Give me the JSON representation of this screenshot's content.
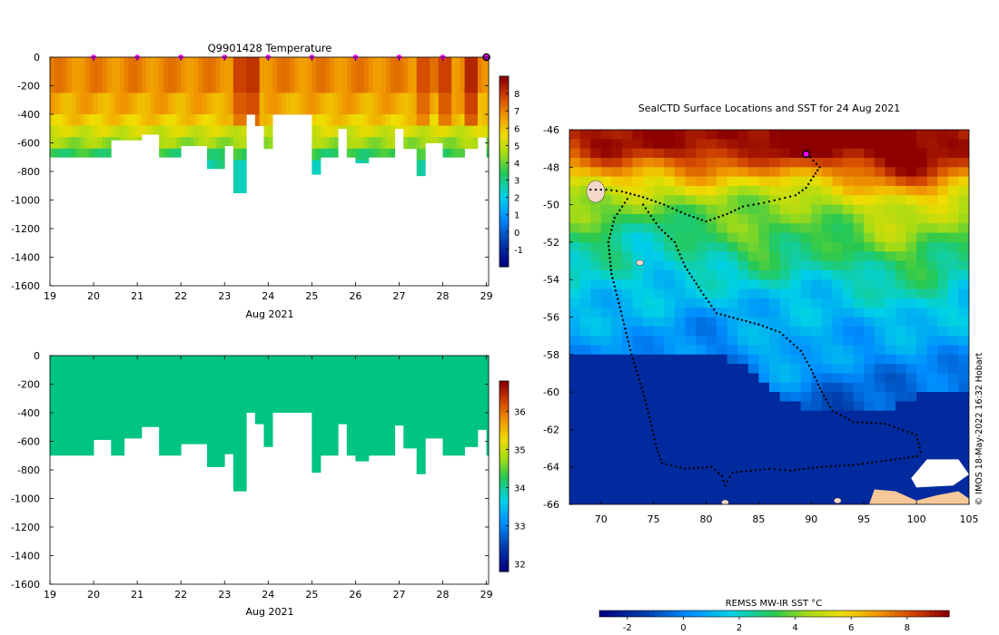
{
  "chart_data": [
    {
      "type": "heatmap",
      "title": "Q9901428  Temperature",
      "xlabel": "Aug 2021",
      "xlim": [
        19,
        29.05
      ],
      "ylim": [
        -1600,
        0
      ],
      "x_ticks": [
        "19",
        "20",
        "21",
        "22",
        "23",
        "24",
        "25",
        "26",
        "27",
        "28",
        "29"
      ],
      "y_ticks": [
        "0",
        "-200",
        "-400",
        "-600",
        "-800",
        "-1000",
        "-1200",
        "-1400",
        "-1600"
      ],
      "colorbar": {
        "min": -2,
        "max": 9,
        "ticks": [
          "-1",
          "0",
          "1",
          "2",
          "3",
          "4",
          "5",
          "6",
          "7",
          "8"
        ]
      },
      "markers_x": [
        20,
        21,
        22,
        23,
        24,
        25,
        26,
        27,
        28
      ],
      "current_x": 29,
      "profile_bottoms": [
        [
          19.0,
          700
        ],
        [
          19.5,
          700
        ],
        [
          20.0,
          700
        ],
        [
          20.4,
          580
        ],
        [
          20.7,
          580
        ],
        [
          21.1,
          540
        ],
        [
          21.5,
          700
        ],
        [
          22.0,
          620
        ],
        [
          22.4,
          620
        ],
        [
          22.6,
          780
        ],
        [
          23.0,
          620
        ],
        [
          23.2,
          950
        ],
        [
          23.5,
          400
        ],
        [
          23.7,
          480
        ],
        [
          23.9,
          640
        ],
        [
          24.1,
          400
        ],
        [
          24.5,
          400
        ],
        [
          25.0,
          820
        ],
        [
          25.2,
          700
        ],
        [
          25.6,
          500
        ],
        [
          25.8,
          700
        ],
        [
          26.0,
          740
        ],
        [
          26.3,
          700
        ],
        [
          26.9,
          500
        ],
        [
          27.1,
          640
        ],
        [
          27.4,
          830
        ],
        [
          27.6,
          600
        ],
        [
          28.0,
          700
        ],
        [
          28.5,
          640
        ],
        [
          28.8,
          560
        ],
        [
          29.0,
          700
        ]
      ],
      "levels": [
        {
          "depth": [
            0,
            250
          ],
          "value": 7.0
        },
        {
          "depth": [
            250,
            400
          ],
          "value": 6.5
        },
        {
          "depth": [
            400,
            480
          ],
          "value": 6.0
        },
        {
          "depth": [
            480,
            560
          ],
          "value": 5.2
        },
        {
          "depth": [
            560,
            640
          ],
          "value": 4.5
        },
        {
          "depth": [
            640,
            720
          ],
          "value": 3.5
        },
        {
          "depth": [
            720,
            1000
          ],
          "value": 2.8
        }
      ],
      "warm_columns": [
        [
          23.3,
          8.0
        ],
        [
          23.6,
          8.2
        ],
        [
          27.5,
          7.8
        ],
        [
          28.0,
          8.0
        ],
        [
          28.6,
          8.4
        ]
      ]
    },
    {
      "type": "heatmap",
      "title": "",
      "xlabel": "Aug 2021",
      "xlim": [
        19,
        29.05
      ],
      "ylim": [
        -1600,
        0
      ],
      "x_ticks": [
        "19",
        "20",
        "21",
        "22",
        "23",
        "24",
        "25",
        "26",
        "27",
        "28",
        "29"
      ],
      "y_ticks": [
        "0",
        "-200",
        "-400",
        "-600",
        "-800",
        "-1000",
        "-1200",
        "-1400",
        "-1600"
      ],
      "colorbar": {
        "min": 31.8,
        "max": 36.8,
        "ticks": [
          "32",
          "33",
          "34",
          "35",
          "36"
        ]
      },
      "field_value": 33.8,
      "profile_bottoms": [
        [
          19.0,
          700
        ],
        [
          19.5,
          700
        ],
        [
          20.0,
          590
        ],
        [
          20.4,
          700
        ],
        [
          20.7,
          580
        ],
        [
          21.1,
          500
        ],
        [
          21.5,
          700
        ],
        [
          22.0,
          620
        ],
        [
          22.4,
          620
        ],
        [
          22.6,
          780
        ],
        [
          23.0,
          690
        ],
        [
          23.2,
          950
        ],
        [
          23.5,
          400
        ],
        [
          23.7,
          480
        ],
        [
          23.9,
          640
        ],
        [
          24.1,
          400
        ],
        [
          24.5,
          400
        ],
        [
          25.0,
          820
        ],
        [
          25.2,
          700
        ],
        [
          25.6,
          480
        ],
        [
          25.8,
          700
        ],
        [
          26.0,
          740
        ],
        [
          26.3,
          700
        ],
        [
          26.9,
          490
        ],
        [
          27.1,
          650
        ],
        [
          27.4,
          830
        ],
        [
          27.6,
          580
        ],
        [
          28.0,
          700
        ],
        [
          28.5,
          640
        ],
        [
          28.8,
          520
        ],
        [
          29.0,
          700
        ]
      ]
    },
    {
      "type": "heatmap",
      "title": "SealCTD Surface Locations and SST for 24 Aug 2021",
      "xlim": [
        67,
        105
      ],
      "ylim": [
        -66,
        -46
      ],
      "x_ticks": [
        "70",
        "75",
        "80",
        "85",
        "90",
        "95",
        "100",
        "105"
      ],
      "y_ticks": [
        "-46",
        "-48",
        "-50",
        "-52",
        "-54",
        "-56",
        "-58",
        "-60",
        "-62",
        "-64",
        "-66"
      ],
      "colorbar": {
        "label": "REMSS MW-IR SST °C",
        "min": -3,
        "max": 9.5,
        "ticks": [
          "-2",
          "0",
          "2",
          "4",
          "6",
          "8"
        ]
      },
      "credit": "© IMOS 18-May-2022 16:32 Hobart",
      "sst_by_latitude": [
        [
          -46,
          8.5
        ],
        [
          -47,
          8.0
        ],
        [
          -48,
          6.5
        ],
        [
          -49,
          5.0
        ],
        [
          -50,
          4.0
        ],
        [
          -51,
          3.6
        ],
        [
          -52,
          3.0
        ],
        [
          -53,
          2.4
        ],
        [
          -54,
          1.8
        ],
        [
          -55,
          1.3
        ],
        [
          -56,
          0.9
        ],
        [
          -57,
          0.6
        ],
        [
          -58,
          0.3
        ],
        [
          -59,
          -0.2
        ],
        [
          -60,
          -0.6
        ],
        [
          -61,
          -1.2
        ],
        [
          -62,
          -1.6
        ],
        [
          -63,
          -1.8
        ],
        [
          -66,
          -1.9
        ]
      ],
      "sst_anomalies": [
        {
          "lon": 88,
          "lat": -46.5,
          "r": 4.0,
          "d": 2.0
        },
        {
          "lon": 97,
          "lat": -47.5,
          "r": 5.0,
          "d": 2.2
        },
        {
          "lon": 102,
          "lat": -48.5,
          "r": 4.0,
          "d": 1.5
        },
        {
          "lon": 72,
          "lat": -47.0,
          "r": 4.5,
          "d": 1.2
        },
        {
          "lon": 80,
          "lat": -47.5,
          "r": 3.5,
          "d": 1.4
        },
        {
          "lon": 75,
          "lat": -52.0,
          "r": 3.0,
          "d": -1.2
        },
        {
          "lon": 85,
          "lat": -52.5,
          "r": 2.5,
          "d": 1.0
        },
        {
          "lon": 98,
          "lat": -52.0,
          "r": 4.0,
          "d": 1.0
        },
        {
          "lon": 100,
          "lat": -55.0,
          "r": 4.0,
          "d": 0.8
        },
        {
          "lon": 88,
          "lat": -58.5,
          "r": 3.5,
          "d": 0.8
        },
        {
          "lon": 80,
          "lat": -57.0,
          "r": 3.5,
          "d": -0.6
        }
      ],
      "ice_edge": [
        [
          67,
          -57.9
        ],
        [
          75,
          -57.9
        ],
        [
          80,
          -58.0
        ],
        [
          84,
          -58.4
        ],
        [
          86,
          -59.8
        ],
        [
          88,
          -60.7
        ],
        [
          92,
          -60.9
        ],
        [
          97,
          -61.0
        ],
        [
          100,
          -60.2
        ],
        [
          103,
          -60.1
        ],
        [
          105,
          -60.0
        ]
      ],
      "ice_patch": [
        [
          99.5,
          -64.6
        ],
        [
          101,
          -63.6
        ],
        [
          104,
          -63.6
        ],
        [
          105,
          -64.4
        ],
        [
          103.5,
          -65.0
        ],
        [
          100,
          -65.1
        ]
      ],
      "land": [
        [
          95.5,
          -66
        ],
        [
          96,
          -65.2
        ],
        [
          98,
          -65.3
        ],
        [
          100,
          -65.8
        ],
        [
          102,
          -65.5
        ],
        [
          104,
          -65.3
        ],
        [
          105,
          -65.7
        ],
        [
          105,
          -66
        ]
      ],
      "islands": [
        [
          69.5,
          -49.3
        ],
        [
          73.7,
          -53.1
        ],
        [
          81.8,
          -65.9
        ],
        [
          92.5,
          -65.8
        ]
      ],
      "seal_track": [
        [
          69.0,
          -49.2
        ],
        [
          70.5,
          -49.2
        ],
        [
          72.0,
          -49.3
        ],
        [
          74.0,
          -49.6
        ],
        [
          76.0,
          -50.0
        ],
        [
          78.0,
          -50.5
        ],
        [
          80.0,
          -50.9
        ],
        [
          82.0,
          -50.5
        ],
        [
          83.5,
          -50.1
        ],
        [
          85.5,
          -49.9
        ],
        [
          87.0,
          -49.7
        ],
        [
          88.5,
          -49.5
        ],
        [
          89.5,
          -49.1
        ],
        [
          90.2,
          -48.5
        ],
        [
          90.8,
          -48.0
        ],
        [
          89.6,
          -47.3
        ]
      ],
      "seal_track_2": [
        [
          72.5,
          -49.7
        ],
        [
          71.3,
          -50.7
        ],
        [
          70.7,
          -52.0
        ],
        [
          71.0,
          -53.7
        ],
        [
          71.9,
          -55.7
        ],
        [
          72.9,
          -58.0
        ],
        [
          74.0,
          -60.0
        ],
        [
          74.8,
          -61.8
        ],
        [
          75.3,
          -63.0
        ],
        [
          75.8,
          -63.8
        ],
        [
          78.0,
          -64.1
        ],
        [
          80.5,
          -64.0
        ],
        [
          81.5,
          -64.5
        ],
        [
          81.8,
          -65.0
        ],
        [
          82.5,
          -64.3
        ],
        [
          86.0,
          -64.1
        ],
        [
          88.0,
          -64.2
        ],
        [
          91.0,
          -64.0
        ],
        [
          94.0,
          -63.9
        ],
        [
          98.0,
          -63.6
        ],
        [
          100.5,
          -63.4
        ]
      ],
      "seal_track_3": [
        [
          74.0,
          -50.0
        ],
        [
          75.5,
          -51.2
        ],
        [
          77.0,
          -52.0
        ],
        [
          78.0,
          -53.3
        ],
        [
          79.5,
          -54.6
        ],
        [
          81.0,
          -55.8
        ],
        [
          83.0,
          -56.1
        ],
        [
          85.0,
          -56.4
        ],
        [
          87.0,
          -56.8
        ],
        [
          89.0,
          -57.8
        ],
        [
          90.0,
          -58.8
        ],
        [
          91.0,
          -60.0
        ],
        [
          92.0,
          -61.0
        ],
        [
          94.0,
          -61.6
        ],
        [
          97.0,
          -61.7
        ],
        [
          100.0,
          -62.3
        ],
        [
          100.5,
          -63.4
        ]
      ],
      "current_position": [
        89.5,
        -47.3
      ]
    }
  ]
}
